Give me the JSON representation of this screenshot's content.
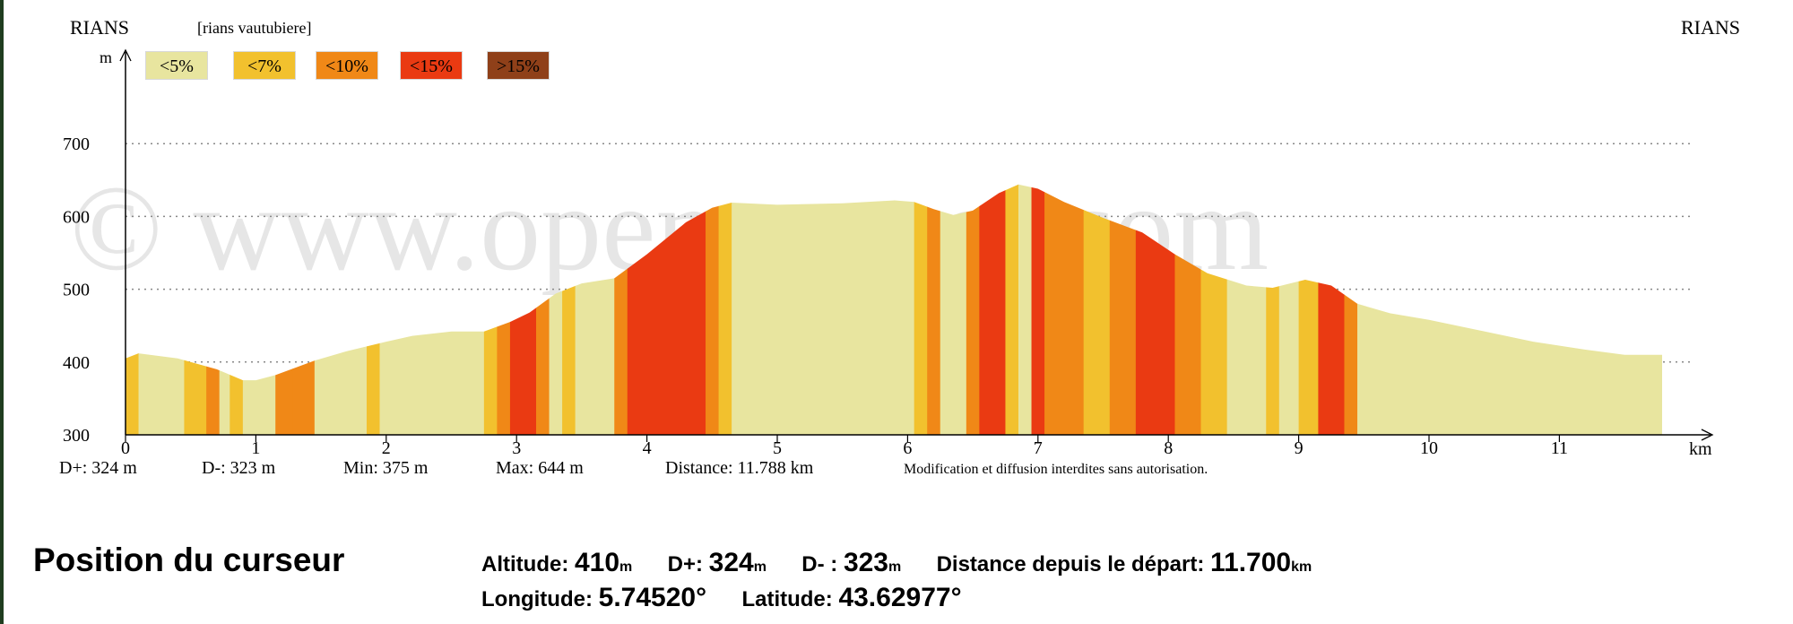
{
  "header": {
    "start_name": "RIANS",
    "route_name": "[rians vautubiere]",
    "end_name": "RIANS"
  },
  "legend": [
    {
      "label": "<5%",
      "color": "#e8e59f"
    },
    {
      "label": "<7%",
      "color": "#f2c12e"
    },
    {
      "label": "<10%",
      "color": "#f08817"
    },
    {
      "label": "<15%",
      "color": "#ea3a12"
    },
    {
      "label": ">15%",
      "color": "#8f4019"
    }
  ],
  "watermark": "© www.openrunner.com",
  "stats": {
    "d_plus": "D+: 324 m",
    "d_minus": "D-: 323 m",
    "min": "Min: 375 m",
    "max": "Max: 644 m",
    "distance": "Distance: 11.788 km",
    "notice": "Modification et diffusion interdites sans autorisation."
  },
  "cursor": {
    "title": "Position du curseur",
    "altitude_label": "Altitude:",
    "altitude_value": "410",
    "altitude_unit": "m",
    "dplus_label": "D+:",
    "dplus_value": "324",
    "dplus_unit": "m",
    "dminus_label": "D- :",
    "dminus_value": "323",
    "dminus_unit": "m",
    "distance_label": "Distance depuis le départ:",
    "distance_value": "11.700",
    "distance_unit": "km",
    "longitude_label": "Longitude:",
    "longitude_value": "5.74520°",
    "latitude_label": "Latitude:",
    "latitude_value": "43.62977°"
  },
  "chart_data": {
    "type": "area",
    "title": "",
    "xlabel": "km",
    "ylabel": "m",
    "xlim": [
      0,
      12
    ],
    "ylim": [
      300,
      750
    ],
    "x_ticks": [
      "0",
      "1",
      "2",
      "3",
      "4",
      "5",
      "6",
      "7",
      "8",
      "9",
      "10",
      "11"
    ],
    "y_ticks": [
      "300",
      "400",
      "500",
      "600",
      "700"
    ],
    "grid": "horizontal dotted",
    "profile": [
      {
        "x": 0.0,
        "y": 405
      },
      {
        "x": 0.1,
        "y": 412
      },
      {
        "x": 0.4,
        "y": 405
      },
      {
        "x": 0.7,
        "y": 390
      },
      {
        "x": 0.9,
        "y": 375
      },
      {
        "x": 1.0,
        "y": 375
      },
      {
        "x": 1.15,
        "y": 382
      },
      {
        "x": 1.45,
        "y": 402
      },
      {
        "x": 1.7,
        "y": 415
      },
      {
        "x": 2.0,
        "y": 428
      },
      {
        "x": 2.2,
        "y": 436
      },
      {
        "x": 2.5,
        "y": 442
      },
      {
        "x": 2.75,
        "y": 442
      },
      {
        "x": 2.95,
        "y": 455
      },
      {
        "x": 3.1,
        "y": 468
      },
      {
        "x": 3.3,
        "y": 494
      },
      {
        "x": 3.5,
        "y": 508
      },
      {
        "x": 3.75,
        "y": 515
      },
      {
        "x": 4.0,
        "y": 548
      },
      {
        "x": 4.3,
        "y": 592
      },
      {
        "x": 4.5,
        "y": 612
      },
      {
        "x": 4.65,
        "y": 619
      },
      {
        "x": 5.0,
        "y": 616
      },
      {
        "x": 5.5,
        "y": 618
      },
      {
        "x": 5.9,
        "y": 622
      },
      {
        "x": 6.05,
        "y": 620
      },
      {
        "x": 6.2,
        "y": 610
      },
      {
        "x": 6.35,
        "y": 602
      },
      {
        "x": 6.5,
        "y": 608
      },
      {
        "x": 6.7,
        "y": 632
      },
      {
        "x": 6.85,
        "y": 644
      },
      {
        "x": 7.0,
        "y": 638
      },
      {
        "x": 7.2,
        "y": 620
      },
      {
        "x": 7.5,
        "y": 598
      },
      {
        "x": 7.8,
        "y": 578
      },
      {
        "x": 8.05,
        "y": 548
      },
      {
        "x": 8.3,
        "y": 522
      },
      {
        "x": 8.6,
        "y": 505
      },
      {
        "x": 8.8,
        "y": 502
      },
      {
        "x": 9.05,
        "y": 513
      },
      {
        "x": 9.25,
        "y": 505
      },
      {
        "x": 9.45,
        "y": 480
      },
      {
        "x": 9.7,
        "y": 467
      },
      {
        "x": 10.0,
        "y": 458
      },
      {
        "x": 10.4,
        "y": 443
      },
      {
        "x": 10.8,
        "y": 428
      },
      {
        "x": 11.2,
        "y": 417
      },
      {
        "x": 11.5,
        "y": 410
      },
      {
        "x": 11.7,
        "y": 410
      },
      {
        "x": 11.788,
        "y": 410
      }
    ],
    "slope_segments": [
      {
        "from": 0.0,
        "to": 0.1,
        "class": "<7%"
      },
      {
        "from": 0.1,
        "to": 0.45,
        "class": "<5%"
      },
      {
        "from": 0.45,
        "to": 0.62,
        "class": "<7%"
      },
      {
        "from": 0.62,
        "to": 0.72,
        "class": "<10%"
      },
      {
        "from": 0.72,
        "to": 0.8,
        "class": "<5%"
      },
      {
        "from": 0.8,
        "to": 0.9,
        "class": "<7%"
      },
      {
        "from": 0.9,
        "to": 1.15,
        "class": "<5%"
      },
      {
        "from": 1.15,
        "to": 1.28,
        "class": "<10%"
      },
      {
        "from": 1.28,
        "to": 1.45,
        "class": "<10%"
      },
      {
        "from": 1.45,
        "to": 1.85,
        "class": "<5%"
      },
      {
        "from": 1.85,
        "to": 1.95,
        "class": "<7%"
      },
      {
        "from": 1.95,
        "to": 2.75,
        "class": "<5%"
      },
      {
        "from": 2.75,
        "to": 2.85,
        "class": "<7%"
      },
      {
        "from": 2.85,
        "to": 2.95,
        "class": "<10%"
      },
      {
        "from": 2.95,
        "to": 3.15,
        "class": "<15%"
      },
      {
        "from": 3.15,
        "to": 3.25,
        "class": "<10%"
      },
      {
        "from": 3.25,
        "to": 3.35,
        "class": "<5%"
      },
      {
        "from": 3.35,
        "to": 3.45,
        "class": "<7%"
      },
      {
        "from": 3.45,
        "to": 3.75,
        "class": "<5%"
      },
      {
        "from": 3.75,
        "to": 3.85,
        "class": "<10%"
      },
      {
        "from": 3.85,
        "to": 4.45,
        "class": "<15%"
      },
      {
        "from": 4.45,
        "to": 4.55,
        "class": "<10%"
      },
      {
        "from": 4.55,
        "to": 4.65,
        "class": "<7%"
      },
      {
        "from": 4.65,
        "to": 6.05,
        "class": "<5%"
      },
      {
        "from": 6.05,
        "to": 6.15,
        "class": "<7%"
      },
      {
        "from": 6.15,
        "to": 6.25,
        "class": "<10%"
      },
      {
        "from": 6.25,
        "to": 6.45,
        "class": "<5%"
      },
      {
        "from": 6.45,
        "to": 6.55,
        "class": "<10%"
      },
      {
        "from": 6.55,
        "to": 6.75,
        "class": "<15%"
      },
      {
        "from": 6.75,
        "to": 6.85,
        "class": "<7%"
      },
      {
        "from": 6.85,
        "to": 6.95,
        "class": "<5%"
      },
      {
        "from": 6.95,
        "to": 7.05,
        "class": "<15%"
      },
      {
        "from": 7.05,
        "to": 7.15,
        "class": "<10%"
      },
      {
        "from": 7.15,
        "to": 7.35,
        "class": "<10%"
      },
      {
        "from": 7.35,
        "to": 7.55,
        "class": "<7%"
      },
      {
        "from": 7.55,
        "to": 7.75,
        "class": "<10%"
      },
      {
        "from": 7.75,
        "to": 8.05,
        "class": "<15%"
      },
      {
        "from": 8.05,
        "to": 8.25,
        "class": "<10%"
      },
      {
        "from": 8.25,
        "to": 8.45,
        "class": "<7%"
      },
      {
        "from": 8.45,
        "to": 8.75,
        "class": "<5%"
      },
      {
        "from": 8.75,
        "to": 8.85,
        "class": "<7%"
      },
      {
        "from": 8.85,
        "to": 9.0,
        "class": "<5%"
      },
      {
        "from": 9.0,
        "to": 9.15,
        "class": "<7%"
      },
      {
        "from": 9.15,
        "to": 9.35,
        "class": "<15%"
      },
      {
        "from": 9.35,
        "to": 9.45,
        "class": "<10%"
      },
      {
        "from": 9.45,
        "to": 11.788,
        "class": "<5%"
      }
    ]
  }
}
